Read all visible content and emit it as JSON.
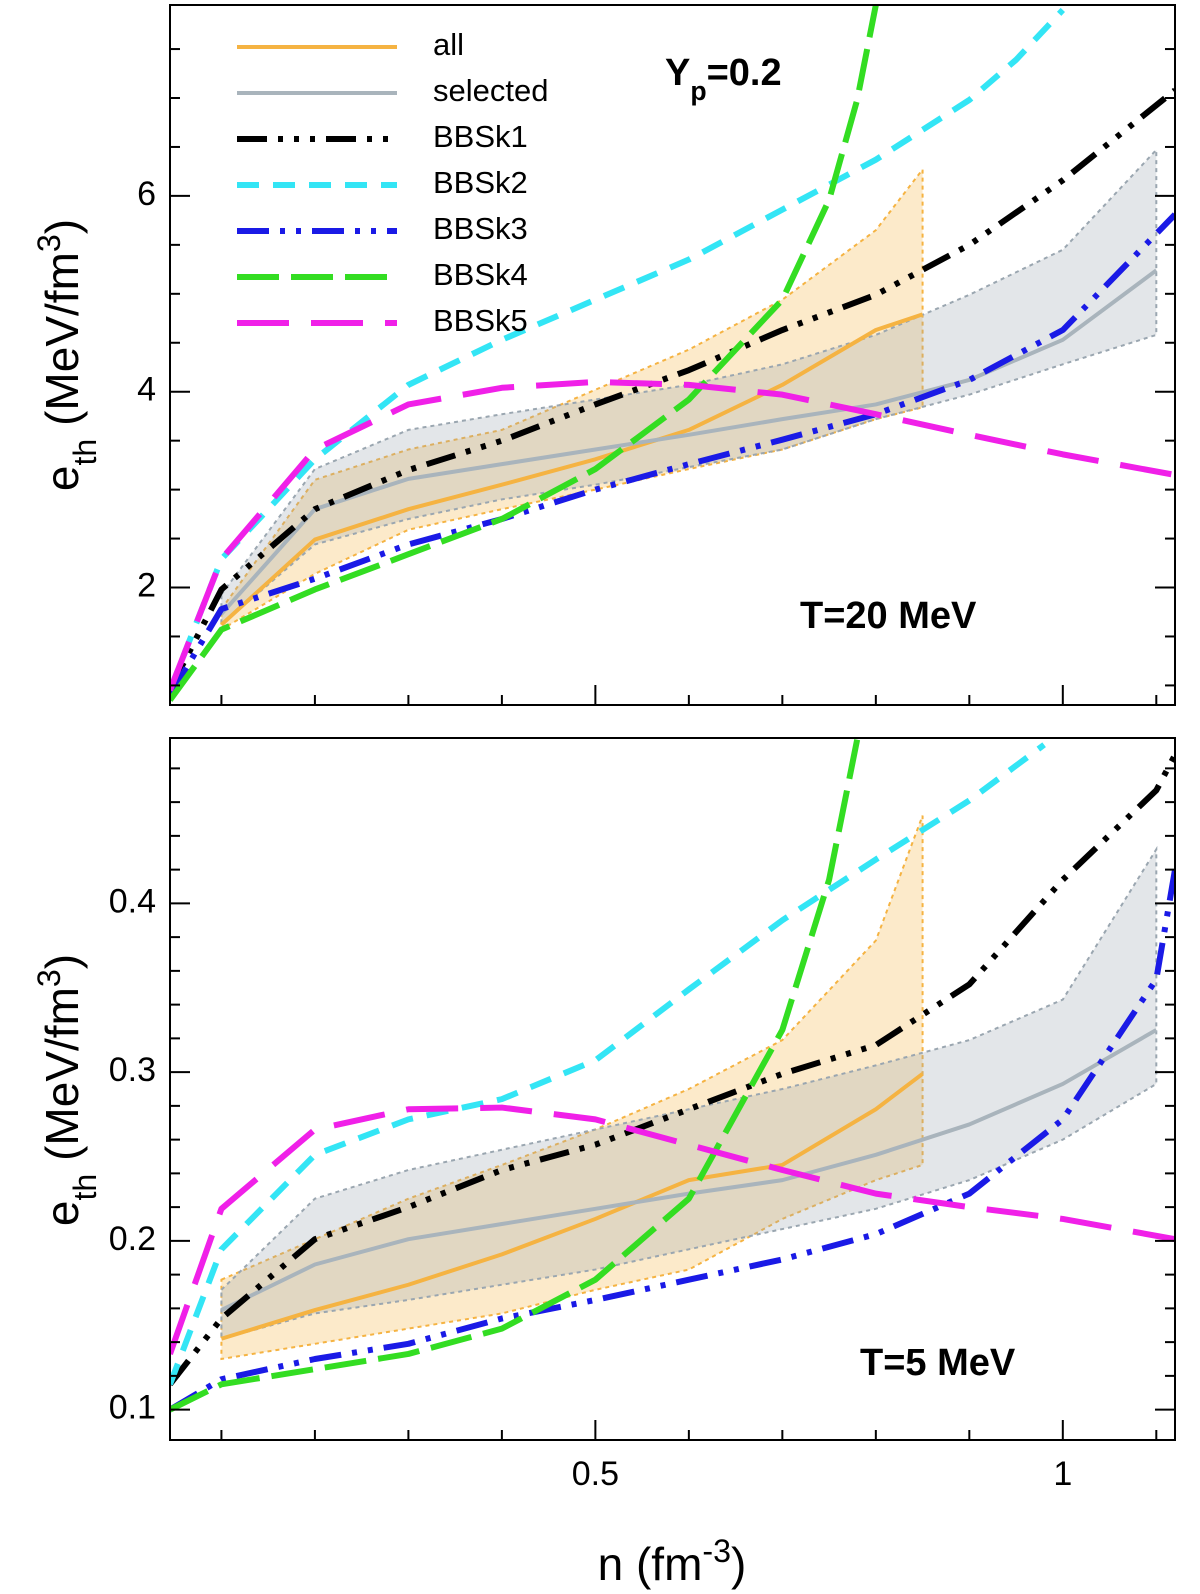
{
  "chart_data": [
    {
      "type": "line",
      "y_label": {
        "main": "e",
        "sub": "th",
        "unit": " (MeV/fm",
        "sup": "3",
        "close": ")"
      },
      "annotations": [
        {
          "main": "Y",
          "sub": "p",
          "rest": "=0.2"
        },
        {
          "main": "T=20 MeV"
        }
      ],
      "legend": "upper left",
      "xlim": [
        0.045,
        1.12
      ],
      "xticks": [
        0.5,
        1
      ],
      "xticks_minor": [
        0.1,
        0.2,
        0.3,
        0.4,
        0.6,
        0.7,
        0.8,
        0.9,
        1.1
      ],
      "ylim": [
        0.8,
        7.95
      ],
      "yticks": [
        2,
        4,
        6
      ],
      "yticks_minor": [
        1,
        1.5,
        2.5,
        3,
        3.5,
        4.5,
        5,
        5.5,
        6.5,
        7,
        7.5
      ],
      "bands": [
        {
          "color": "#f5b342",
          "x": [
            0.1,
            0.2,
            0.3,
            0.4,
            0.5,
            0.6,
            0.7,
            0.8,
            0.85
          ],
          "lower": [
            1.57,
            2.14,
            2.59,
            2.8,
            3.0,
            3.21,
            3.41,
            3.72,
            3.84
          ],
          "upper": [
            1.78,
            3.1,
            3.41,
            3.61,
            4.02,
            4.43,
            4.94,
            5.65,
            6.27
          ]
        },
        {
          "color": "#9aa6b0",
          "x": [
            0.1,
            0.2,
            0.3,
            0.4,
            0.5,
            0.6,
            0.7,
            0.8,
            0.9,
            1.0,
            1.1
          ],
          "lower": [
            1.62,
            2.44,
            2.7,
            2.9,
            3.05,
            3.23,
            3.41,
            3.72,
            3.97,
            4.28,
            4.58
          ],
          "upper": [
            1.93,
            3.21,
            3.61,
            3.77,
            3.92,
            4.07,
            4.28,
            4.58,
            4.99,
            5.45,
            6.47
          ]
        }
      ],
      "series": [
        {
          "name": "all",
          "color": "#f5b342",
          "x": [
            0.1,
            0.2,
            0.3,
            0.4,
            0.5,
            0.6,
            0.7,
            0.8,
            0.85
          ],
          "values": [
            1.62,
            2.49,
            2.8,
            3.05,
            3.31,
            3.61,
            4.07,
            4.63,
            4.79
          ]
        },
        {
          "name": "selected",
          "color": "#a9b4bc",
          "x": [
            0.1,
            0.2,
            0.3,
            0.4,
            0.5,
            0.6,
            0.7,
            0.8,
            0.9,
            1.0,
            1.1
          ],
          "values": [
            1.73,
            2.8,
            3.11,
            3.26,
            3.41,
            3.56,
            3.72,
            3.87,
            4.12,
            4.53,
            5.24
          ]
        },
        {
          "name": "BBSk1",
          "color": "#000000",
          "x": [
            0.045,
            0.1,
            0.2,
            0.3,
            0.4,
            0.5,
            0.6,
            0.7,
            0.8,
            0.9,
            1.0,
            1.12
          ],
          "values": [
            0.96,
            1.98,
            2.8,
            3.2,
            3.5,
            3.87,
            4.22,
            4.63,
            4.99,
            5.5,
            6.16,
            7.08
          ]
        },
        {
          "name": "BBSk2",
          "color": "#33e5f5",
          "x": [
            0.045,
            0.1,
            0.2,
            0.3,
            0.4,
            0.5,
            0.6,
            0.7,
            0.8,
            0.9,
            0.95,
            1.0
          ],
          "values": [
            0.95,
            2.29,
            3.31,
            4.07,
            4.53,
            4.94,
            5.35,
            5.86,
            6.37,
            6.98,
            7.39,
            7.9
          ]
        },
        {
          "name": "BBSk3",
          "color": "#1a1ae6",
          "x": [
            0.045,
            0.1,
            0.2,
            0.3,
            0.4,
            0.5,
            0.6,
            0.7,
            0.8,
            0.9,
            1.0,
            1.12
          ],
          "values": [
            0.9,
            1.78,
            2.09,
            2.44,
            2.7,
            3.0,
            3.26,
            3.51,
            3.77,
            4.12,
            4.63,
            5.81
          ]
        },
        {
          "name": "BBSk4",
          "color": "#33dd22",
          "x": [
            0.045,
            0.1,
            0.2,
            0.3,
            0.4,
            0.5,
            0.6,
            0.7,
            0.75,
            0.78,
            0.8
          ],
          "values": [
            0.85,
            1.57,
            1.98,
            2.34,
            2.7,
            3.21,
            3.92,
            4.94,
            5.96,
            6.98,
            7.95
          ]
        },
        {
          "name": "BBSk5",
          "color": "#f020e8",
          "x": [
            0.045,
            0.1,
            0.2,
            0.3,
            0.4,
            0.5,
            0.6,
            0.7,
            0.8,
            0.9,
            1.0,
            1.12
          ],
          "values": [
            0.95,
            2.29,
            3.41,
            3.87,
            4.04,
            4.1,
            4.07,
            3.97,
            3.77,
            3.56,
            3.36,
            3.15
          ]
        }
      ]
    },
    {
      "type": "line",
      "y_label": {
        "main": "e",
        "sub": "th",
        "unit": " (MeV/fm",
        "sup": "3",
        "close": ")"
      },
      "x_label": {
        "main": "n (fm",
        "sup": "-3",
        "close": ")"
      },
      "annotations": [
        {
          "main": "T=5 MeV"
        }
      ],
      "xlim": [
        0.045,
        1.12
      ],
      "xticks": [
        0.5,
        1
      ],
      "xticks_minor": [
        0.1,
        0.2,
        0.3,
        0.4,
        0.6,
        0.7,
        0.8,
        0.9,
        1.1
      ],
      "ylim": [
        0.082,
        0.498
      ],
      "yticks": [
        0.1,
        0.2,
        0.3,
        0.4
      ],
      "yticks_minor": [
        0.12,
        0.14,
        0.16,
        0.18,
        0.22,
        0.24,
        0.26,
        0.28,
        0.32,
        0.34,
        0.36,
        0.38,
        0.42,
        0.44,
        0.46,
        0.48
      ],
      "bands": [
        {
          "color": "#f5b342",
          "x": [
            0.1,
            0.2,
            0.3,
            0.4,
            0.5,
            0.6,
            0.7,
            0.8,
            0.85
          ],
          "lower": [
            0.13,
            0.139,
            0.148,
            0.157,
            0.171,
            0.183,
            0.213,
            0.236,
            0.245
          ],
          "upper": [
            0.177,
            0.201,
            0.225,
            0.245,
            0.266,
            0.29,
            0.319,
            0.378,
            0.452
          ]
        },
        {
          "color": "#9aa6b0",
          "x": [
            0.1,
            0.2,
            0.3,
            0.4,
            0.5,
            0.6,
            0.7,
            0.8,
            0.9,
            1.0,
            1.1
          ],
          "lower": [
            0.142,
            0.157,
            0.165,
            0.174,
            0.183,
            0.195,
            0.207,
            0.219,
            0.236,
            0.26,
            0.293
          ],
          "upper": [
            0.171,
            0.225,
            0.242,
            0.254,
            0.266,
            0.278,
            0.29,
            0.304,
            0.319,
            0.343,
            0.432
          ]
        }
      ],
      "series": [
        {
          "color": "#f5b342",
          "x": [
            0.1,
            0.2,
            0.3,
            0.4,
            0.5,
            0.6,
            0.7,
            0.8,
            0.85
          ],
          "values": [
            0.142,
            0.159,
            0.174,
            0.192,
            0.213,
            0.236,
            0.245,
            0.278,
            0.299
          ]
        },
        {
          "color": "#a9b4bc",
          "x": [
            0.1,
            0.2,
            0.3,
            0.4,
            0.5,
            0.6,
            0.7,
            0.8,
            0.9,
            1.0,
            1.1
          ],
          "values": [
            0.159,
            0.186,
            0.201,
            0.21,
            0.219,
            0.228,
            0.236,
            0.251,
            0.269,
            0.293,
            0.325
          ]
        },
        {
          "color": "#000000",
          "x": [
            0.045,
            0.1,
            0.2,
            0.3,
            0.4,
            0.5,
            0.6,
            0.7,
            0.8,
            0.9,
            1.0,
            1.1,
            1.12
          ],
          "values": [
            0.115,
            0.154,
            0.201,
            0.22,
            0.242,
            0.257,
            0.278,
            0.299,
            0.316,
            0.352,
            0.414,
            0.467,
            0.488
          ]
        },
        {
          "color": "#33e5f5",
          "x": [
            0.045,
            0.1,
            0.2,
            0.3,
            0.4,
            0.5,
            0.6,
            0.7,
            0.8,
            0.9,
            0.98
          ],
          "values": [
            0.115,
            0.195,
            0.251,
            0.272,
            0.284,
            0.307,
            0.349,
            0.39,
            0.426,
            0.461,
            0.494
          ]
        },
        {
          "color": "#1a1ae6",
          "x": [
            0.045,
            0.1,
            0.2,
            0.3,
            0.4,
            0.5,
            0.6,
            0.7,
            0.8,
            0.9,
            1.0,
            1.1,
            1.12
          ],
          "values": [
            0.1,
            0.118,
            0.13,
            0.139,
            0.154,
            0.165,
            0.177,
            0.189,
            0.204,
            0.228,
            0.272,
            0.355,
            0.42
          ]
        },
        {
          "color": "#33dd22",
          "x": [
            0.045,
            0.1,
            0.2,
            0.3,
            0.4,
            0.5,
            0.6,
            0.7,
            0.75,
            0.78
          ],
          "values": [
            0.1,
            0.115,
            0.124,
            0.133,
            0.148,
            0.177,
            0.225,
            0.325,
            0.414,
            0.497
          ]
        },
        {
          "color": "#f020e8",
          "x": [
            0.045,
            0.1,
            0.2,
            0.3,
            0.4,
            0.5,
            0.6,
            0.7,
            0.8,
            0.9,
            1.0,
            1.12
          ],
          "values": [
            0.133,
            0.219,
            0.266,
            0.278,
            0.279,
            0.272,
            0.257,
            0.242,
            0.228,
            0.22,
            0.213,
            0.201
          ]
        }
      ]
    }
  ]
}
